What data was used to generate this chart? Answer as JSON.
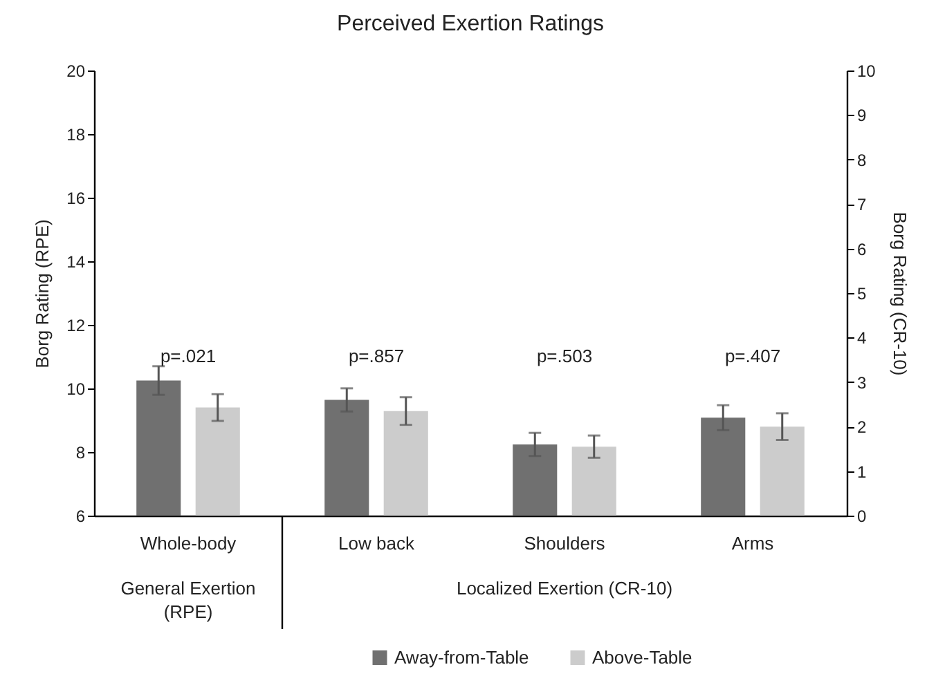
{
  "chart_data": {
    "type": "bar",
    "title": "Perceived Exertion Ratings",
    "ylabel": "Borg Rating (RPE)",
    "y2label": "Borg Rating (CR-10)",
    "categories": [
      "Whole-body",
      "Low back",
      "Shoulders",
      "Arms"
    ],
    "series": [
      {
        "name": "Away-from-Table",
        "color": "#707070",
        "values": [
          10.25,
          null,
          null,
          null
        ],
        "errors": [
          0.45,
          null,
          null,
          null
        ]
      },
      {
        "name": "Above-Table",
        "color": "#cccccc",
        "values": [
          9.4,
          null,
          null,
          null
        ],
        "errors": [
          0.42,
          null,
          null,
          null
        ]
      },
      {
        "color": "#707070",
        "axis": "y2",
        "values": [
          null,
          2.6,
          1.6,
          2.2
        ],
        "errors": [
          null,
          0.26,
          0.26,
          0.28
        ]
      },
      {
        "color": "#cccccc",
        "axis": "y2",
        "values": [
          null,
          2.35,
          1.55,
          2.0
        ],
        "errors": [
          null,
          0.31,
          0.25,
          0.3
        ]
      }
    ],
    "ylim": [
      6,
      20
    ],
    "yticks": [
      6,
      8,
      10,
      12,
      14,
      16,
      18,
      20
    ],
    "y2lim": [
      0,
      10
    ],
    "y2ticks": [
      0,
      1,
      2,
      3,
      4,
      5,
      6,
      7,
      8,
      9,
      10
    ],
    "annotations": [
      "p=.021",
      "p=.857",
      "p=.503",
      "p=.407",
      "General Exertion (RPE)",
      "Localized Exertion (CR-10)"
    ],
    "grid": false,
    "legend": "bottom"
  }
}
